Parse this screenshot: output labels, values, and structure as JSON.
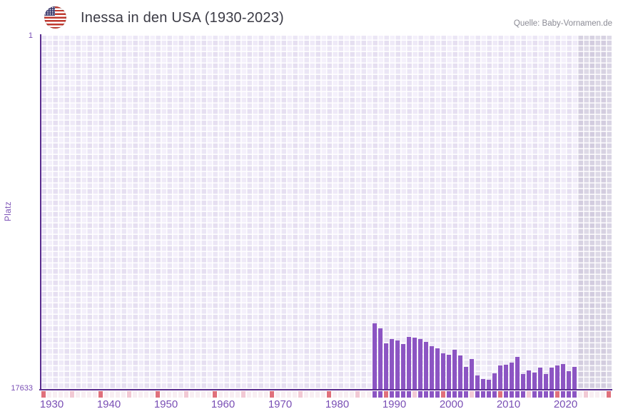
{
  "header": {
    "title": "Inessa in den USA (1930-2023)",
    "source": "Quelle: Baby-Vornamen.de",
    "flag_icon": "usa-flag-round"
  },
  "chart_data": {
    "type": "bar",
    "title": "Inessa in den USA (1930-2023)",
    "xlabel": "",
    "ylabel": "Platz",
    "y_axis": {
      "top_label": "1",
      "bottom_label": "17633",
      "min": 1,
      "max": 17633,
      "inverted": true,
      "scale": "linear"
    },
    "x_range": {
      "start": 1930,
      "end": 2029,
      "first_data_year": 1988,
      "last_data_year": 2023
    },
    "x_ticks": [
      "1930",
      "1940",
      "1950",
      "1960",
      "1970",
      "1980",
      "1990",
      "2000",
      "2010",
      "2020"
    ],
    "years": [
      1988,
      1989,
      1990,
      1991,
      1992,
      1993,
      1994,
      1995,
      1996,
      1997,
      1998,
      1999,
      2000,
      2001,
      2002,
      2003,
      2004,
      2005,
      2006,
      2007,
      2008,
      2009,
      2010,
      2011,
      2012,
      2013,
      2014,
      2015,
      2016,
      2017,
      2018,
      2019,
      2020,
      2021,
      2022,
      2023
    ],
    "ranks": [
      14370,
      14600,
      15350,
      15130,
      15220,
      15390,
      15020,
      15070,
      15140,
      15280,
      15500,
      15600,
      15850,
      15920,
      15670,
      15970,
      16540,
      16150,
      16960,
      17130,
      17160,
      16840,
      16470,
      16410,
      16330,
      16040,
      16870,
      16720,
      16800,
      16550,
      16900,
      16580,
      16470,
      16400,
      16730,
      16520
    ],
    "legend": "none",
    "grid": "checkered lavender, white gridlines every year/step",
    "no_data_years_marked_pink": "1930-1987 and 2024 onward"
  },
  "colors": {
    "bar": "#8c55c3",
    "axis": "#5a2d8e",
    "axis_label": "#7a4fb5",
    "marker_decade_red": "#e0707b",
    "marker_half_decade_pink": "#f2c9d4",
    "marker_no_data_pale": "#f8eef2",
    "title_text": "#3b3b45",
    "source_text": "#8b8b95"
  }
}
